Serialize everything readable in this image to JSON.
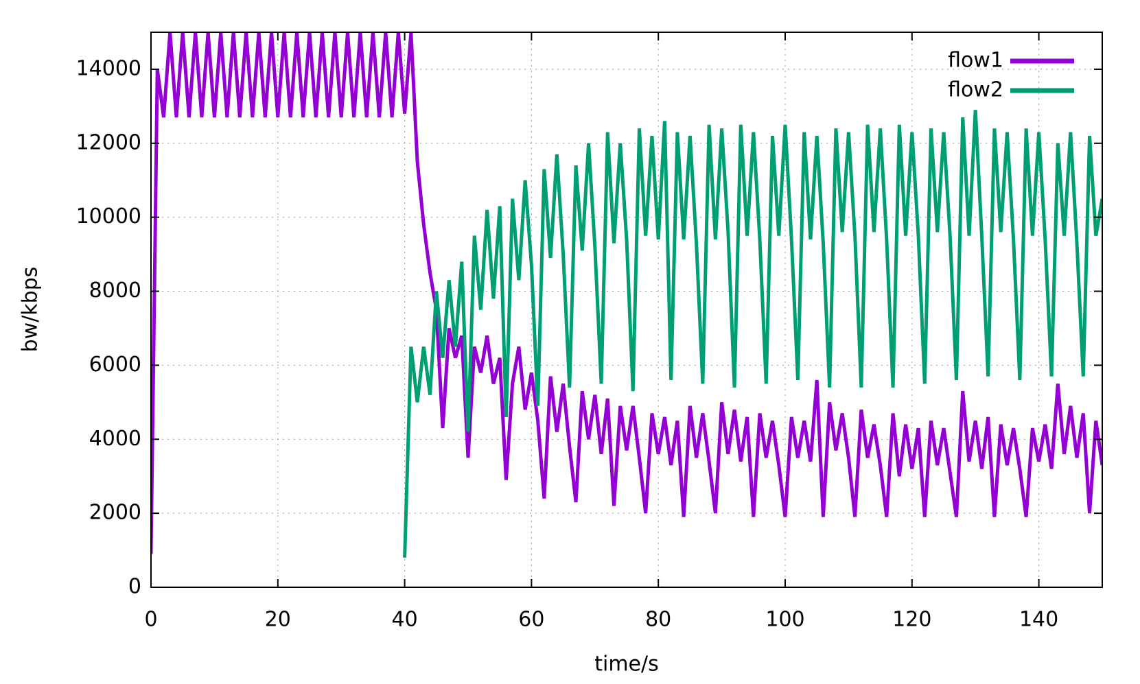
{
  "chart_data": {
    "type": "line",
    "xlabel": "time/s",
    "ylabel": "bw/kbps",
    "xlim": [
      0,
      150
    ],
    "ylim": [
      0,
      15000
    ],
    "xticks": [
      0,
      20,
      40,
      60,
      80,
      100,
      120,
      140
    ],
    "yticks": [
      0,
      2000,
      4000,
      6000,
      8000,
      10000,
      12000,
      14000
    ],
    "grid": true,
    "legend": "top-right",
    "x": [
      0,
      1,
      2,
      3,
      4,
      5,
      6,
      7,
      8,
      9,
      10,
      11,
      12,
      13,
      14,
      15,
      16,
      17,
      18,
      19,
      20,
      21,
      22,
      23,
      24,
      25,
      26,
      27,
      28,
      29,
      30,
      31,
      32,
      33,
      34,
      35,
      36,
      37,
      38,
      39,
      40,
      41,
      42,
      43,
      44,
      45,
      46,
      47,
      48,
      49,
      50,
      51,
      52,
      53,
      54,
      55,
      56,
      57,
      58,
      59,
      60,
      61,
      62,
      63,
      64,
      65,
      66,
      67,
      68,
      69,
      70,
      71,
      72,
      73,
      74,
      75,
      76,
      77,
      78,
      79,
      80,
      81,
      82,
      83,
      84,
      85,
      86,
      87,
      88,
      89,
      90,
      91,
      92,
      93,
      94,
      95,
      96,
      97,
      98,
      99,
      100,
      101,
      102,
      103,
      104,
      105,
      106,
      107,
      108,
      109,
      110,
      111,
      112,
      113,
      114,
      115,
      116,
      117,
      118,
      119,
      120,
      121,
      122,
      123,
      124,
      125,
      126,
      127,
      128,
      129,
      130,
      131,
      132,
      133,
      134,
      135,
      136,
      137,
      138,
      139,
      140,
      141,
      142,
      143,
      144,
      145,
      146,
      147,
      148,
      149,
      150
    ],
    "series": [
      {
        "name": "flow1",
        "color": "#9400d3",
        "values": [
          900,
          14000,
          12700,
          15000,
          12700,
          15000,
          12700,
          15000,
          12700,
          15000,
          12700,
          15000,
          12700,
          15000,
          12700,
          15000,
          12700,
          15000,
          12700,
          15000,
          12700,
          15000,
          12700,
          15000,
          12700,
          15000,
          12700,
          15000,
          12700,
          15000,
          12700,
          15000,
          12700,
          15000,
          12700,
          15000,
          12700,
          15000,
          12700,
          15000,
          12800,
          15000,
          11500,
          9800,
          8500,
          7500,
          4300,
          7000,
          6200,
          6800,
          3500,
          6500,
          5800,
          6800,
          5500,
          6200,
          2900,
          5500,
          6500,
          4800,
          5800,
          4500,
          2400,
          5700,
          4200,
          5500,
          3800,
          2300,
          5300,
          4000,
          5200,
          3600,
          5100,
          2200,
          4900,
          3700,
          4900,
          3500,
          2000,
          4700,
          3600,
          4600,
          3300,
          4500,
          1900,
          4900,
          3500,
          4700,
          3400,
          2000,
          5000,
          3600,
          4800,
          3400,
          4600,
          1900,
          4700,
          3500,
          4500,
          3300,
          1900,
          4600,
          3500,
          4500,
          3400,
          5600,
          1900,
          5000,
          3700,
          4700,
          3500,
          1900,
          4800,
          3500,
          4400,
          3300,
          1900,
          4700,
          3000,
          4400,
          3200,
          4300,
          1900,
          4500,
          3300,
          4300,
          3100,
          1900,
          5300,
          3400,
          4500,
          3200,
          4600,
          1900,
          4400,
          3300,
          4300,
          3200,
          1900,
          4300,
          3400,
          4400,
          3200,
          5500,
          3600,
          4900,
          3500,
          4700,
          2000,
          4500,
          3300
        ]
      },
      {
        "name": "flow2",
        "color": "#009e73",
        "values": [
          null,
          null,
          null,
          null,
          null,
          null,
          null,
          null,
          null,
          null,
          null,
          null,
          null,
          null,
          null,
          null,
          null,
          null,
          null,
          null,
          null,
          null,
          null,
          null,
          null,
          null,
          null,
          null,
          null,
          null,
          null,
          null,
          null,
          null,
          null,
          null,
          null,
          null,
          null,
          null,
          800,
          6500,
          5000,
          6500,
          5200,
          8000,
          6200,
          8300,
          6500,
          8800,
          4200,
          9500,
          7500,
          10200,
          7800,
          10300,
          4600,
          10500,
          8300,
          11000,
          8700,
          4900,
          11300,
          8900,
          11700,
          9000,
          5400,
          11400,
          9100,
          12000,
          9200,
          5500,
          12300,
          9300,
          12000,
          9400,
          5300,
          12400,
          9500,
          12200,
          9400,
          12600,
          5600,
          12300,
          9400,
          12200,
          9300,
          5500,
          12500,
          9400,
          12400,
          9600,
          5400,
          12500,
          9500,
          12300,
          9400,
          5500,
          12200,
          9500,
          12500,
          9400,
          5600,
          12300,
          9400,
          12200,
          9300,
          5400,
          12400,
          9600,
          12300,
          9500,
          5400,
          12500,
          9600,
          12400,
          9400,
          5400,
          12500,
          9500,
          12300,
          9500,
          5500,
          12400,
          9600,
          12300,
          9500,
          5600,
          12700,
          9500,
          12900,
          9500,
          5700,
          12400,
          9600,
          12300,
          9400,
          5600,
          12400,
          9500,
          12300,
          9400,
          5700,
          12000,
          9500,
          12300,
          9300,
          5700,
          12200,
          9500,
          10500
        ]
      }
    ]
  }
}
